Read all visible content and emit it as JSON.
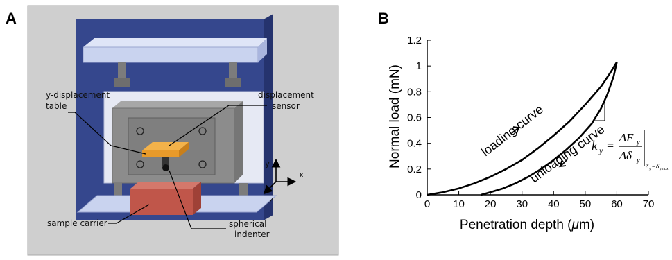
{
  "panel_a": {
    "letter": "A",
    "labels": {
      "y_displacement_table": [
        "y-displacement",
        "table"
      ],
      "displacement_sensor": [
        "displacement",
        "sensor"
      ],
      "sample_carrier": "sample carrier",
      "spherical_indenter": [
        "spherical",
        "indenter"
      ]
    },
    "axes": {
      "x": "x",
      "y": "y",
      "z": "z"
    },
    "colors": {
      "frame_blue": "#35478d",
      "plate": "#c9d3ef",
      "inner": "#e6e9f4",
      "block": "#8c8c8c",
      "table": "#e89a2a",
      "sample": "#c0564a"
    }
  },
  "panel_b": {
    "letter": "B",
    "chart_data": {
      "type": "line",
      "xlabel_pre": "Penetration depth (",
      "xlabel_mu": "μ",
      "xlabel_post": "m)",
      "ylabel": "Normal load (mN)",
      "xlim": [
        0,
        70
      ],
      "ylim": [
        0,
        1.2
      ],
      "xticks": [
        "0",
        "10",
        "20",
        "30",
        "40",
        "50",
        "60",
        "70"
      ],
      "yticks": [
        "0",
        "0.2",
        "0.4",
        "0.6",
        "0.8",
        "1",
        "1.2"
      ],
      "series": [
        {
          "x": [
            0,
            5,
            10,
            15,
            20,
            25,
            30,
            35,
            40,
            45,
            50,
            55,
            58,
            60
          ],
          "y": [
            0,
            0.02,
            0.05,
            0.09,
            0.14,
            0.2,
            0.27,
            0.36,
            0.46,
            0.57,
            0.7,
            0.84,
            0.95,
            1.03
          ]
        },
        {
          "x": [
            60,
            59,
            57,
            55,
            52,
            48,
            44,
            40,
            36,
            32,
            28,
            24,
            20,
            17
          ],
          "y": [
            1.03,
            0.92,
            0.78,
            0.67,
            0.55,
            0.44,
            0.35,
            0.27,
            0.2,
            0.14,
            0.09,
            0.05,
            0.02,
            0
          ]
        }
      ],
      "annotations": {
        "loading": "loading curve",
        "unloading": "unloading curve"
      },
      "equation": {
        "k": "k",
        "k_sub": "y",
        "eq": "=",
        "dF": "ΔF",
        "dF_sub": "y",
        "dd": "Δδ",
        "dd_sub": "y",
        "cond_delta1": "δ",
        "cond_sub1": "y",
        "cond_eq": "=",
        "cond_delta2": "δ",
        "cond_sub2": "ymax"
      }
    }
  }
}
